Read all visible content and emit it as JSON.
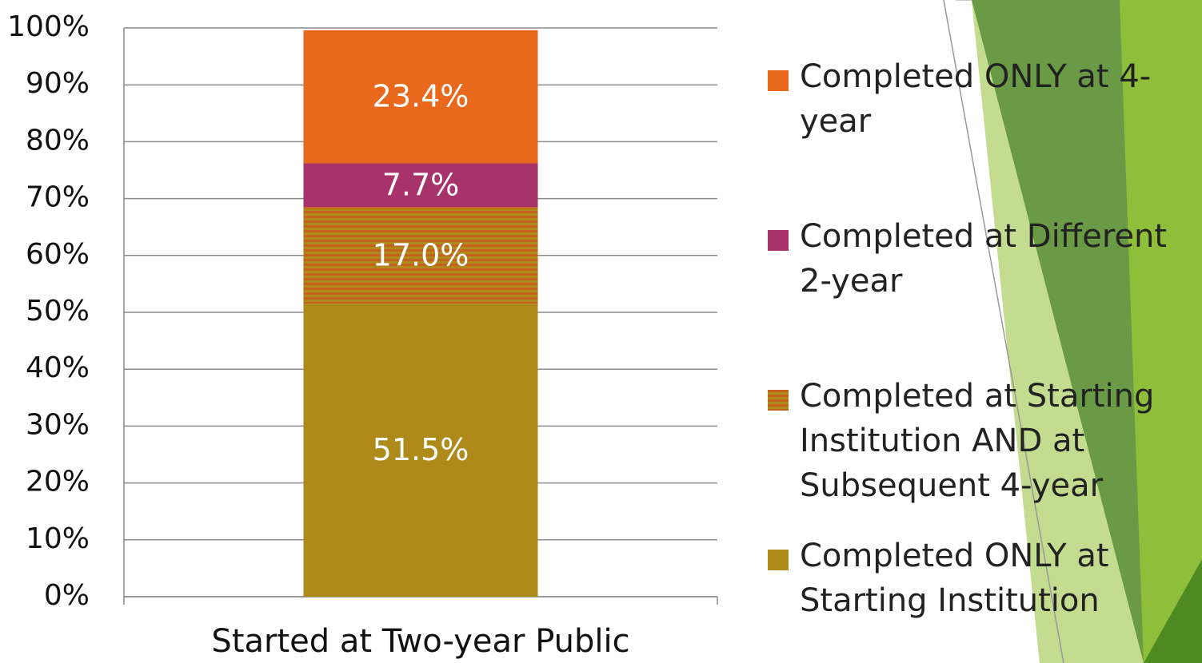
{
  "chart_data": {
    "type": "stacked_bar",
    "categories": [
      "Started at Two-year Public"
    ],
    "series": [
      {
        "name": "Completed ONLY at Starting Institution",
        "color": "#ad8a1a",
        "values": [
          51.5
        ],
        "value_labels": [
          "51.5%"
        ]
      },
      {
        "name": "Completed at Starting Institution AND at Subsequent 4-year",
        "color": "#c4611c",
        "values": [
          17.0
        ],
        "value_labels": [
          "17.0%"
        ]
      },
      {
        "name": "Completed at Different 2-year",
        "color": "#a8336b",
        "values": [
          7.7
        ],
        "value_labels": [
          "7.7%"
        ]
      },
      {
        "name": "Completed ONLY at 4-year",
        "color": "#e8691c",
        "values": [
          23.4
        ],
        "value_labels": [
          "23.4%"
        ]
      }
    ],
    "ylim": [
      0,
      100
    ],
    "yticks": [
      {
        "value": 0,
        "label": "0%"
      },
      {
        "value": 10,
        "label": "10%"
      },
      {
        "value": 20,
        "label": "20%"
      },
      {
        "value": 30,
        "label": "30%"
      },
      {
        "value": 40,
        "label": "40%"
      },
      {
        "value": 50,
        "label": "50%"
      },
      {
        "value": 60,
        "label": "60%"
      },
      {
        "value": 70,
        "label": "70%"
      },
      {
        "value": 80,
        "label": "80%"
      },
      {
        "value": 90,
        "label": "90%"
      },
      {
        "value": 100,
        "label": "100%"
      }
    ],
    "grid": true
  }
}
